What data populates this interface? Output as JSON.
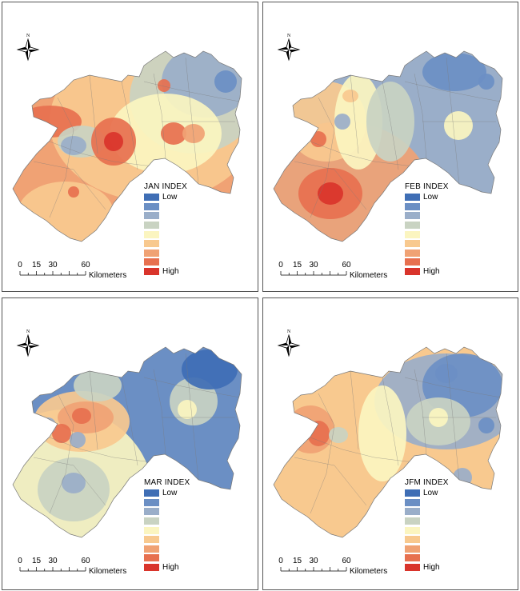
{
  "panels": [
    {
      "id": "jan",
      "title": "JAN INDEX"
    },
    {
      "id": "feb",
      "title": "FEB INDEX"
    },
    {
      "id": "mar",
      "title": "MAR INDEX"
    },
    {
      "id": "jfm",
      "title": "JFM INDEX"
    }
  ],
  "legend": {
    "low_label": "Low",
    "high_label": "High",
    "colors": [
      "#3f6eb5",
      "#6b8fc4",
      "#9aaec9",
      "#c9d3c2",
      "#fbf5c0",
      "#f8c98f",
      "#f0a274",
      "#e7704f",
      "#d9342b"
    ]
  },
  "scalebar": {
    "ticks": [
      "0",
      "15",
      "30",
      "60"
    ],
    "unit": "Kilometers"
  },
  "north_arrow": {
    "label": "N"
  }
}
